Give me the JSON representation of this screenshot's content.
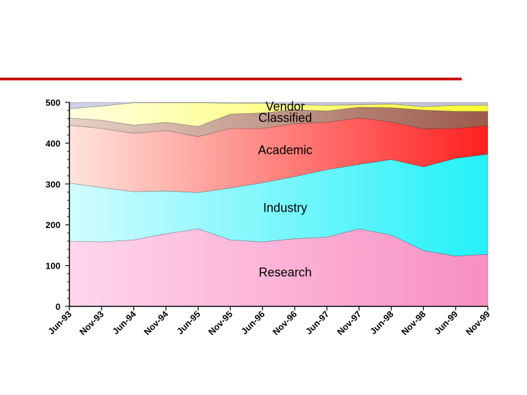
{
  "chart_data": {
    "type": "area",
    "stacked": true,
    "categories": [
      "Jun-93",
      "Nov-93",
      "Jun-94",
      "Nov-94",
      "Jun-95",
      "Nov-95",
      "Jun-96",
      "Nov-96",
      "Jun-97",
      "Nov-97",
      "Jun-98",
      "Nov-98",
      "Jun-99",
      "Nov-99"
    ],
    "ylim": [
      0,
      500
    ],
    "yticks": [
      0,
      100,
      200,
      300,
      400,
      500
    ],
    "grid": false,
    "legend": "none",
    "series": [
      {
        "name": "Research",
        "color": "#f88fc2",
        "values": [
          160,
          158,
          163,
          178,
          190,
          163,
          158,
          166,
          170,
          190,
          175,
          137,
          123,
          128
        ]
      },
      {
        "name": "Industry",
        "color": "#22f1f8",
        "values": [
          142,
          133,
          118,
          105,
          89,
          127,
          145,
          152,
          165,
          158,
          185,
          205,
          240,
          245
        ]
      },
      {
        "name": "Academic",
        "color": "#ff2020",
        "values": [
          142,
          145,
          143,
          148,
          137,
          146,
          133,
          130,
          116,
          114,
          92,
          93,
          73,
          70
        ]
      },
      {
        "name": "Classified",
        "color": "#9b5a4a",
        "values": [
          18,
          20,
          20,
          20,
          25,
          35,
          38,
          34,
          28,
          26,
          35,
          46,
          42,
          35
        ]
      },
      {
        "name": "Vendor",
        "color": "#ffff30",
        "values": [
          22,
          35,
          55,
          48,
          58,
          27,
          24,
          12,
          14,
          6,
          9,
          8,
          15,
          15
        ]
      },
      {
        "name": "",
        "color": "#c0c0d8",
        "values": [
          16,
          9,
          1,
          1,
          1,
          2,
          2,
          6,
          7,
          6,
          4,
          11,
          7,
          7
        ]
      }
    ]
  }
}
